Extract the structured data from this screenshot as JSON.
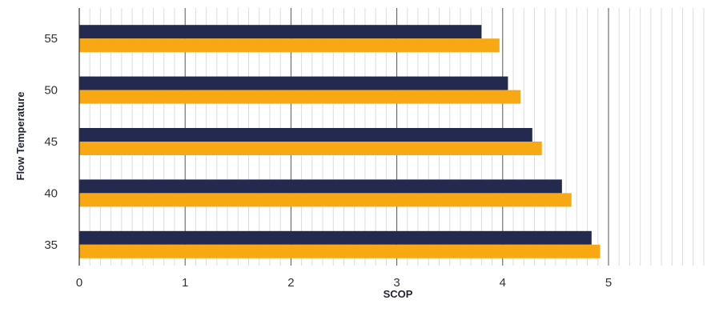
{
  "chart_data": {
    "type": "bar",
    "orientation": "horizontal",
    "title": "",
    "xlabel": "SCOP",
    "ylabel": "Flow Temperature",
    "categories": [
      "35",
      "40",
      "45",
      "50",
      "55"
    ],
    "series": [
      {
        "values": [
          4.84,
          4.56,
          4.28,
          4.05,
          3.8
        ],
        "color": "#23294f"
      },
      {
        "values": [
          4.92,
          4.65,
          4.37,
          4.17,
          3.97
        ],
        "color": "#f7a813"
      }
    ],
    "xlim": [
      0,
      5.95
    ],
    "xticks": [
      0,
      1,
      2,
      3,
      4,
      5
    ],
    "xtick_labels": [
      "0",
      "1",
      "2",
      "3",
      "4",
      "5"
    ],
    "minor_tick_step": 0.1,
    "grid": true,
    "legend": "none"
  }
}
